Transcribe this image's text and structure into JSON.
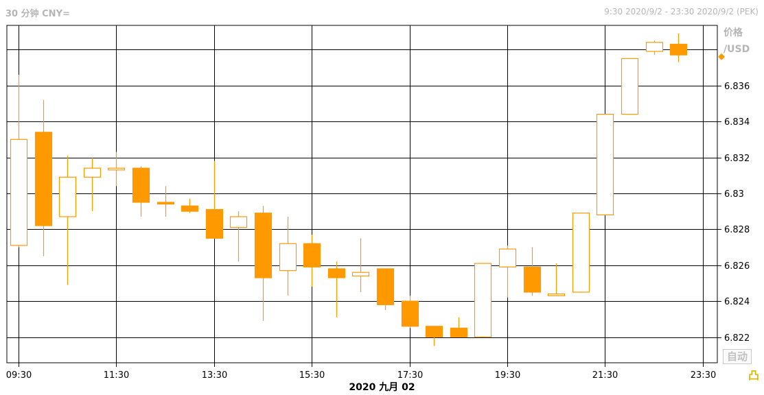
{
  "header": {
    "interval_label": "30 分钟 CNY=",
    "time_range": "9:30 2020/9/2 - 23:30 2020/9/2 (PEK)"
  },
  "axis": {
    "unit_top": "价格",
    "unit_bottom": "/USD",
    "date_label": "2020 九月 02"
  },
  "controls": {
    "auto_label": "自动"
  },
  "colors": {
    "candle": "#FF9900",
    "grid": "#000000",
    "text_muted": "#B5B5B5"
  },
  "chart_data": {
    "type": "candlestick",
    "title": "30 分钟 CNY=",
    "ylabel": "价格 /USD",
    "xlabel": "2020 九月 02",
    "ylim": [
      6.8205,
      6.8404
    ],
    "yticks": [
      "6.822",
      "6.824",
      "6.826",
      "6.828",
      "6.83",
      "6.832",
      "6.834",
      "6.836"
    ],
    "xticks": [
      "09:30",
      "11:30",
      "13:30",
      "15:30",
      "17:30",
      "19:30",
      "21:30",
      "23:30"
    ],
    "grid": true,
    "candles": [
      {
        "time": "09:30",
        "open": 6.8271,
        "high": 6.8366,
        "low": 6.827,
        "close": 6.833
      },
      {
        "time": "10:00",
        "open": 6.8334,
        "high": 6.8352,
        "low": 6.8265,
        "close": 6.8282
      },
      {
        "time": "10:30",
        "open": 6.8287,
        "high": 6.8321,
        "low": 6.8249,
        "close": 6.8309
      },
      {
        "time": "11:00",
        "open": 6.8309,
        "high": 6.832,
        "low": 6.829,
        "close": 6.8314
      },
      {
        "time": "11:30",
        "open": 6.8313,
        "high": 6.8323,
        "low": 6.8304,
        "close": 6.8314
      },
      {
        "time": "12:00",
        "open": 6.8314,
        "high": 6.8315,
        "low": 6.8287,
        "close": 6.8295
      },
      {
        "time": "12:30",
        "open": 6.8295,
        "high": 6.8304,
        "low": 6.8287,
        "close": 6.8294
      },
      {
        "time": "13:00",
        "open": 6.8293,
        "high": 6.8297,
        "low": 6.8289,
        "close": 6.829
      },
      {
        "time": "13:30",
        "open": 6.8291,
        "high": 6.8318,
        "low": 6.8276,
        "close": 6.8275
      },
      {
        "time": "14:00",
        "open": 6.8281,
        "high": 6.829,
        "low": 6.8262,
        "close": 6.8287
      },
      {
        "time": "14:30",
        "open": 6.8289,
        "high": 6.8293,
        "low": 6.8229,
        "close": 6.8253
      },
      {
        "time": "15:00",
        "open": 6.8257,
        "high": 6.8287,
        "low": 6.8243,
        "close": 6.8272
      },
      {
        "time": "15:30",
        "open": 6.8272,
        "high": 6.8277,
        "low": 6.8248,
        "close": 6.8259
      },
      {
        "time": "16:00",
        "open": 6.8258,
        "high": 6.8262,
        "low": 6.8231,
        "close": 6.8253
      },
      {
        "time": "16:30",
        "open": 6.8254,
        "high": 6.8275,
        "low": 6.8245,
        "close": 6.8256
      },
      {
        "time": "17:00",
        "open": 6.8258,
        "high": 6.8258,
        "low": 6.8235,
        "close": 6.8238
      },
      {
        "time": "17:30",
        "open": 6.824,
        "high": 6.8243,
        "low": 6.8225,
        "close": 6.8226
      },
      {
        "time": "18:00",
        "open": 6.8226,
        "high": 6.8226,
        "low": 6.8215,
        "close": 6.822
      },
      {
        "time": "18:30",
        "open": 6.8225,
        "high": 6.8231,
        "low": 6.822,
        "close": 6.822
      },
      {
        "time": "19:00",
        "open": 6.822,
        "high": 6.8261,
        "low": 6.822,
        "close": 6.8261
      },
      {
        "time": "19:30",
        "open": 6.8259,
        "high": 6.8271,
        "low": 6.8242,
        "close": 6.8269
      },
      {
        "time": "20:00",
        "open": 6.8259,
        "high": 6.827,
        "low": 6.8243,
        "close": 6.8245
      },
      {
        "time": "20:30",
        "open": 6.8243,
        "high": 6.8261,
        "low": 6.8243,
        "close": 6.8244
      },
      {
        "time": "21:00",
        "open": 6.8245,
        "high": 6.8289,
        "low": 6.8245,
        "close": 6.8289
      },
      {
        "time": "21:30",
        "open": 6.8288,
        "high": 6.8344,
        "low": 6.8288,
        "close": 6.8344
      },
      {
        "time": "22:00",
        "open": 6.8344,
        "high": 6.8375,
        "low": 6.8344,
        "close": 6.8375
      },
      {
        "time": "22:30",
        "open": 6.8379,
        "high": 6.8385,
        "low": 6.8377,
        "close": 6.8384
      },
      {
        "time": "23:00",
        "open": 6.8383,
        "high": 6.8389,
        "low": 6.8373,
        "close": 6.8377
      }
    ],
    "last_price": 6.8376
  }
}
